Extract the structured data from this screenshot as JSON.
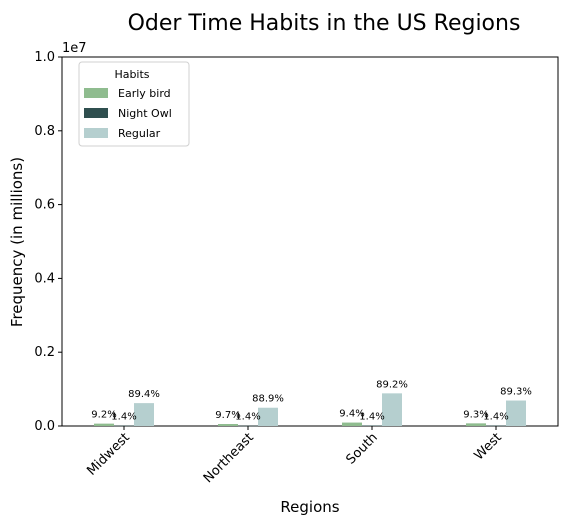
{
  "chart_data": {
    "type": "bar",
    "title": "Oder Time Habits in the US Regions",
    "xlabel": "Regions",
    "ylabel": "Frequency (in millions)",
    "y_offset_text": "1e7",
    "ylim": [
      0,
      10000000
    ],
    "y_ticks": [
      0,
      2000000,
      4000000,
      6000000,
      8000000,
      10000000
    ],
    "y_tick_labels": [
      "0.0",
      "0.2",
      "0.4",
      "0.6",
      "0.8",
      "1.0"
    ],
    "categories": [
      "Midwest",
      "Northeast",
      "South",
      "West"
    ],
    "legend": {
      "title": "Habits",
      "position": "top-left"
    },
    "grid": false,
    "series": [
      {
        "name": "Early bird",
        "color": "#8fbc8f",
        "values": [
          64000,
          54000,
          93000,
          72000
        ],
        "labels": [
          "9.2%",
          "9.7%",
          "9.4%",
          "9.3%"
        ]
      },
      {
        "name": "Night Owl",
        "color": "#2f4f4f",
        "values": [
          10000,
          8000,
          14000,
          11000
        ],
        "labels": [
          "1.4%",
          "1.4%",
          "1.4%",
          "1.4%"
        ]
      },
      {
        "name": "Regular",
        "color": "#b5cfcf",
        "values": [
          620000,
          495000,
          885000,
          690000
        ],
        "labels": [
          "89.4%",
          "88.9%",
          "89.2%",
          "89.3%"
        ]
      }
    ]
  }
}
